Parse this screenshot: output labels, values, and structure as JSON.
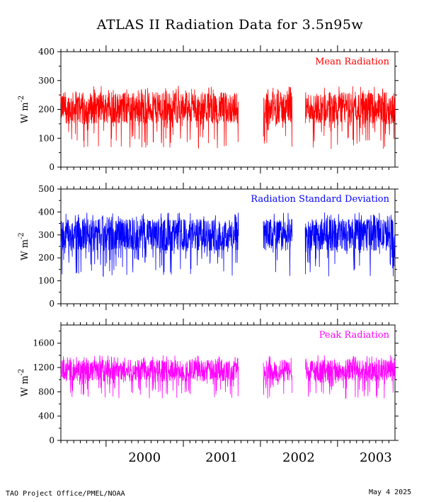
{
  "title": "ATLAS II Radiation Data for 3.5n95w",
  "footer": {
    "left": "TAO Project Office/PMEL/NOAA",
    "right": "May  4 2025"
  },
  "chart_data": [
    {
      "type": "line",
      "label": "Mean Radiation",
      "color": "#ff0000",
      "ylabel": "W m",
      "ylabel_exponent": "-2",
      "ylim": [
        0,
        400
      ],
      "yticks": [
        0,
        100,
        200,
        300,
        400
      ],
      "mean_level": 205,
      "spread": 55,
      "min_level": 0,
      "max_level": 320
    },
    {
      "type": "line",
      "label": "Radiation Standard Deviation",
      "color": "#0000ff",
      "ylabel": "W m",
      "ylabel_exponent": "-2",
      "ylim": [
        0,
        500
      ],
      "yticks": [
        0,
        100,
        200,
        300,
        400,
        500
      ],
      "mean_level": 300,
      "spread": 70,
      "min_level": 0,
      "max_level": 420
    },
    {
      "type": "line",
      "label": "Peak Radiation",
      "color": "#ff00ff",
      "ylabel": "W m",
      "ylabel_exponent": "-2",
      "ylim": [
        0,
        1900
      ],
      "yticks": [
        0,
        400,
        800,
        1200,
        1600
      ],
      "mean_level": 1150,
      "spread": 180,
      "min_level": 0,
      "max_level": 1560
    }
  ],
  "x_axis": {
    "start": "1999-06-01",
    "end": "2003-09-30",
    "year_labels": [
      "2000",
      "2001",
      "2002",
      "2003"
    ],
    "gaps": [
      [
        "2001-09-20",
        "2002-01-15"
      ],
      [
        "2002-06-01",
        "2002-08-01"
      ]
    ]
  }
}
